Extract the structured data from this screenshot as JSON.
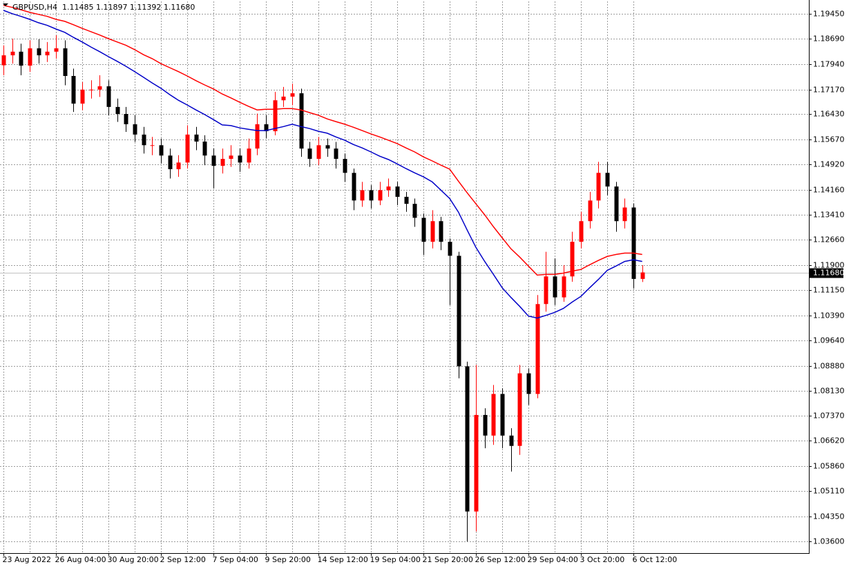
{
  "chart_data": {
    "type": "candlestick",
    "title": "GBPUSD,H4  1.11485 1.11897 1.11392 1.11680",
    "categories": [
      "23 Aug 2022",
      null,
      null,
      null,
      null,
      null,
      "26 Aug 04:00",
      null,
      null,
      null,
      null,
      null,
      "30 Aug 20:00",
      null,
      null,
      null,
      null,
      null,
      "2 Sep 12:00",
      null,
      null,
      null,
      null,
      null,
      "7 Sep 04:00",
      null,
      null,
      null,
      null,
      null,
      "9 Sep 20:00",
      null,
      null,
      null,
      null,
      null,
      "14 Sep 12:00",
      null,
      null,
      null,
      null,
      null,
      "19 Sep 04:00",
      null,
      null,
      null,
      null,
      null,
      "21 Sep 20:00",
      null,
      null,
      null,
      null,
      null,
      "26 Sep 12:00",
      null,
      null,
      null,
      null,
      null,
      "29 Sep 04:00",
      null,
      null,
      null,
      null,
      null,
      "3 Oct 20:00",
      null,
      null,
      null,
      null,
      null,
      "6 Oct 12:00",
      null
    ],
    "open": [
      1.179,
      1.182,
      1.1831,
      1.1789,
      1.1841,
      1.182,
      1.1831,
      1.1841,
      1.1758,
      1.1675,
      1.1717,
      1.1717,
      1.1727,
      1.1665,
      1.1644,
      1.1613,
      1.1582,
      1.155,
      1.155,
      1.1519,
      1.1478,
      1.1498,
      1.1582,
      1.1561,
      1.1519,
      1.1488,
      1.1509,
      1.1519,
      1.1498,
      1.154,
      1.1613,
      1.1592,
      1.1685,
      1.1696,
      1.1706,
      1.154,
      1.1509,
      1.155,
      1.154,
      1.1509,
      1.1467,
      1.1384,
      1.1415,
      1.1384,
      1.1415,
      1.1426,
      1.1395,
      1.1374,
      1.1332,
      1.126,
      1.1322,
      1.126,
      1.1218,
      1.0886,
      1.045,
      1.074,
      1.0678,
      1.0803,
      1.0678,
      1.0647,
      1.0865,
      1.0803,
      1.1073,
      1.1156,
      1.1093,
      1.1156,
      1.126,
      1.1322,
      1.1384,
      1.1467,
      1.1426,
      1.1322,
      1.1363,
      1.11485
    ],
    "high": [
      1.185,
      1.187,
      1.1855,
      1.1865,
      1.1868,
      1.186,
      1.188,
      1.1865,
      1.178,
      1.174,
      1.1745,
      1.176,
      1.1745,
      1.169,
      1.1665,
      1.164,
      1.1605,
      1.1575,
      1.157,
      1.154,
      1.152,
      1.161,
      1.1605,
      1.158,
      1.154,
      1.154,
      1.155,
      1.154,
      1.157,
      1.1645,
      1.164,
      1.171,
      1.1725,
      1.1735,
      1.172,
      1.156,
      1.1575,
      1.157,
      1.156,
      1.1525,
      1.148,
      1.144,
      1.143,
      1.144,
      1.145,
      1.144,
      1.141,
      1.139,
      1.1345,
      1.1355,
      1.1335,
      1.127,
      1.123,
      1.09,
      1.089,
      1.076,
      1.083,
      1.082,
      1.07,
      1.089,
      1.088,
      1.11,
      1.123,
      1.121,
      1.119,
      1.129,
      1.135,
      1.141,
      1.15,
      1.15,
      1.144,
      1.139,
      1.1375,
      1.11897
    ],
    "low": [
      1.176,
      1.1795,
      1.176,
      1.177,
      1.1795,
      1.18,
      1.181,
      1.173,
      1.165,
      1.1655,
      1.169,
      1.1695,
      1.164,
      1.162,
      1.159,
      1.156,
      1.1525,
      1.152,
      1.1495,
      1.145,
      1.1455,
      1.148,
      1.1535,
      1.149,
      1.142,
      1.1465,
      1.1485,
      1.147,
      1.148,
      1.152,
      1.157,
      1.158,
      1.1665,
      1.167,
      1.1515,
      1.1485,
      1.149,
      1.1515,
      1.148,
      1.144,
      1.1355,
      1.1365,
      1.136,
      1.137,
      1.1395,
      1.137,
      1.135,
      1.1305,
      1.122,
      1.124,
      1.1235,
      1.107,
      1.085,
      1.036,
      1.039,
      1.064,
      1.065,
      1.064,
      1.057,
      1.062,
      1.077,
      1.079,
      1.105,
      1.107,
      1.108,
      1.114,
      1.124,
      1.13,
      1.136,
      1.14,
      1.129,
      1.13,
      1.112,
      1.11392
    ],
    "close": [
      1.182,
      1.1831,
      1.1789,
      1.1841,
      1.182,
      1.1831,
      1.1841,
      1.1758,
      1.1675,
      1.1717,
      1.1717,
      1.1727,
      1.1665,
      1.1644,
      1.1613,
      1.1582,
      1.155,
      1.155,
      1.1519,
      1.1478,
      1.1498,
      1.1582,
      1.1561,
      1.1519,
      1.1488,
      1.1509,
      1.1519,
      1.1498,
      1.154,
      1.1613,
      1.1592,
      1.1685,
      1.1696,
      1.1706,
      1.154,
      1.1509,
      1.155,
      1.154,
      1.1509,
      1.1467,
      1.1384,
      1.1415,
      1.1384,
      1.1415,
      1.1426,
      1.1395,
      1.1374,
      1.1332,
      1.126,
      1.1322,
      1.126,
      1.1218,
      1.0886,
      1.045,
      1.074,
      1.0678,
      1.0803,
      1.0678,
      1.0647,
      1.0865,
      1.0803,
      1.1073,
      1.1156,
      1.1093,
      1.1156,
      1.126,
      1.1322,
      1.1384,
      1.1467,
      1.1426,
      1.1322,
      1.1363,
      1.11485,
      1.1168
    ],
    "up_color": "#ff0000",
    "down_color": "#000000",
    "lines": [
      {
        "color": "#0000c8",
        "values": [
          1.1955,
          1.1945,
          1.1937,
          1.1928,
          1.1918,
          1.191,
          1.1899,
          1.1889,
          1.1874,
          1.186,
          1.1845,
          1.1831,
          1.1816,
          1.1802,
          1.1787,
          1.1771,
          1.1754,
          1.1737,
          1.1721,
          1.1702,
          1.1685,
          1.1671,
          1.1656,
          1.1642,
          1.1627,
          1.1611,
          1.1609,
          1.1602,
          1.1598,
          1.1594,
          1.1594,
          1.16,
          1.1606,
          1.1613,
          1.1606,
          1.16,
          1.1592,
          1.1586,
          1.1575,
          1.1565,
          1.1552,
          1.1542,
          1.153,
          1.1517,
          1.1507,
          1.1494,
          1.148,
          1.1467,
          1.1455,
          1.144,
          1.1415,
          1.139,
          1.1349,
          1.1295,
          1.1243,
          1.1201,
          1.1162,
          1.1122,
          1.1093,
          1.1066,
          1.1037,
          1.1031,
          1.1039,
          1.1048,
          1.106,
          1.1079,
          1.1096,
          1.1122,
          1.1147,
          1.1174,
          1.1187,
          1.1201,
          1.1206,
          1.1201
        ]
      },
      {
        "color": "#ff0000",
        "values": [
          1.197,
          1.1964,
          1.1957,
          1.1949,
          1.1943,
          1.1937,
          1.1928,
          1.1922,
          1.1912,
          1.1901,
          1.1891,
          1.1881,
          1.187,
          1.186,
          1.185,
          1.1837,
          1.1822,
          1.181,
          1.1795,
          1.1783,
          1.1771,
          1.1758,
          1.1744,
          1.1731,
          1.1719,
          1.1704,
          1.1692,
          1.1679,
          1.1667,
          1.1656,
          1.1658,
          1.1658,
          1.166,
          1.166,
          1.1656,
          1.1648,
          1.164,
          1.1629,
          1.1621,
          1.1613,
          1.1604,
          1.1594,
          1.1584,
          1.1575,
          1.1565,
          1.1555,
          1.1542,
          1.153,
          1.1515,
          1.1503,
          1.149,
          1.1478,
          1.1442,
          1.1407,
          1.1374,
          1.1341,
          1.1305,
          1.1272,
          1.1239,
          1.1214,
          1.1187,
          1.116,
          1.1162,
          1.1162,
          1.1166,
          1.1172,
          1.1177,
          1.1191,
          1.1204,
          1.1216,
          1.1222,
          1.1226,
          1.1226,
          1.1222
        ]
      }
    ],
    "current_price": {
      "value": 1.1168,
      "label": "1.11680"
    },
    "ylim": [
      1.0325,
      1.1982
    ],
    "yticks": [
      {
        "value": 1.1945,
        "label": "1.19450"
      },
      {
        "value": 1.1869,
        "label": "1.18690"
      },
      {
        "value": 1.1794,
        "label": "1.17940"
      },
      {
        "value": 1.1717,
        "label": "1.17170"
      },
      {
        "value": 1.1643,
        "label": "1.16430"
      },
      {
        "value": 1.1567,
        "label": "1.15670"
      },
      {
        "value": 1.1492,
        "label": "1.14920"
      },
      {
        "value": 1.1416,
        "label": "1.14160"
      },
      {
        "value": 1.1341,
        "label": "1.13410"
      },
      {
        "value": 1.1266,
        "label": "1.12660"
      },
      {
        "value": 1.119,
        "label": "1.11900"
      },
      {
        "value": 1.1115,
        "label": "1.11150"
      },
      {
        "value": 1.1039,
        "label": "1.10390"
      },
      {
        "value": 1.0964,
        "label": "1.09640"
      },
      {
        "value": 1.0888,
        "label": "1.08880"
      },
      {
        "value": 1.0813,
        "label": "1.08130"
      },
      {
        "value": 1.0737,
        "label": "1.07370"
      },
      {
        "value": 1.0662,
        "label": "1.06620"
      },
      {
        "value": 1.0586,
        "label": "1.05860"
      },
      {
        "value": 1.0511,
        "label": "1.05110"
      },
      {
        "value": 1.0435,
        "label": "1.04350"
      },
      {
        "value": 1.036,
        "label": "1.03600"
      }
    ],
    "grid": true
  }
}
